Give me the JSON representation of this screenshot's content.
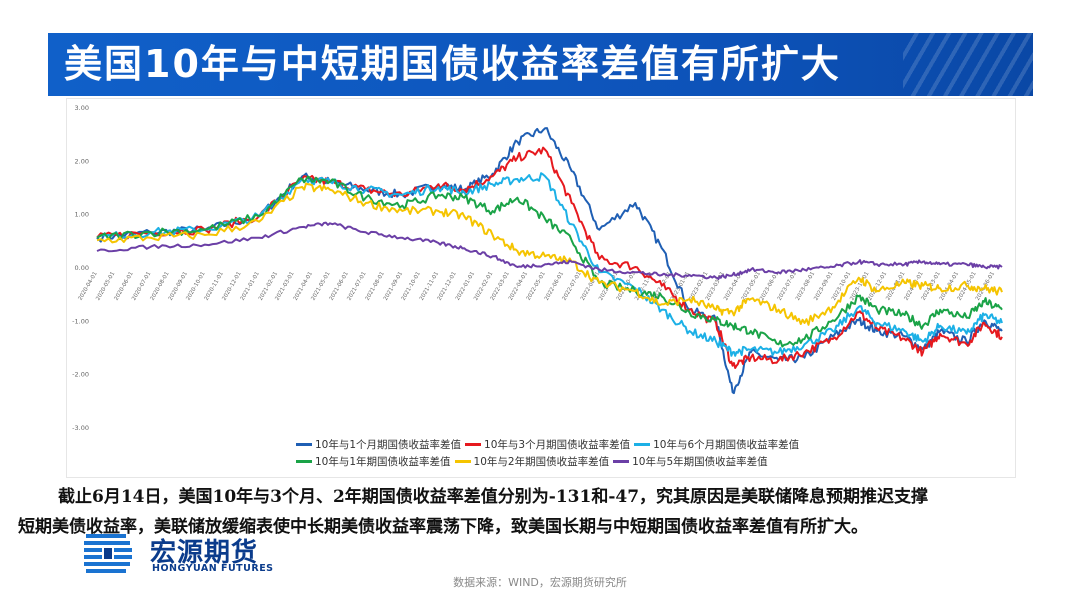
{
  "title": "美国10年与中短期国债收益率差值有所扩大",
  "body": {
    "para1": "截止6月14日，美国10年与3个月、2年期国债收益率差值分别为-131和-47，究其原因是美联储降息预期推迟支撑",
    "para2": "短期美债收益率，美联储放缓缩表使中长期美债收益率震荡下降，致美国长期与中短期国债收益率差值有所扩大。"
  },
  "logo": {
    "cn": "宏源期货",
    "en": "HONGYUAN FUTURES"
  },
  "source": "数据来源：WIND，宏源期货研究所",
  "colors": {
    "banner": "#0d52b8",
    "s1m": "#1f5fb4",
    "s3m": "#e6191e",
    "s6m": "#1cb0e6",
    "s1y": "#1aa347",
    "s2y": "#f5c400",
    "s5y": "#6b3fa6"
  },
  "chart_data": {
    "type": "line",
    "ylim": [
      -3.0,
      3.0
    ],
    "yticks": [
      "3.00",
      "2.00",
      "1.00",
      "0.00",
      "-1.00",
      "-2.00",
      "-3.00"
    ],
    "ytick_values": [
      3,
      2,
      1,
      0,
      -1,
      -2,
      -3
    ],
    "x_start": "2020-04-01",
    "x_end": "2024-06-14",
    "xticks": [
      "2020-04-01",
      "2020-05-01",
      "2020-06-01",
      "2020-07-01",
      "2020-08-01",
      "2020-09-01",
      "2020-10-01",
      "2020-11-01",
      "2020-12-01",
      "2021-01-01",
      "2021-02-01",
      "2021-03-01",
      "2021-04-01",
      "2021-05-01",
      "2021-06-01",
      "2021-07-01",
      "2021-08-01",
      "2021-09-01",
      "2021-10-01",
      "2021-11-01",
      "2021-12-01",
      "2022-01-01",
      "2022-02-01",
      "2022-03-01",
      "2022-04-01",
      "2022-05-01",
      "2022-06-01",
      "2022-07-01",
      "2022-08-01",
      "2022-09-01",
      "2022-10-01",
      "2022-11-01",
      "2022-12-01",
      "2023-01-01",
      "2023-02-01",
      "2023-03-01",
      "2023-04-01",
      "2023-05-01",
      "2023-06-01",
      "2023-07-01",
      "2023-08-01",
      "2023-09-01",
      "2023-10-01",
      "2023-11-01",
      "2023-12-01",
      "2024-01-01",
      "2024-02-01",
      "2024-03-01",
      "2024-04-01",
      "2024-05-01",
      "2024-06-01"
    ],
    "series": [
      {
        "name": "10年与1个月期国债收益率差值",
        "color": "#1f5fb4",
        "x": [
          "2020-04-01",
          "2020-07-01",
          "2020-10-01",
          "2021-01-01",
          "2021-03-15",
          "2021-05-01",
          "2021-07-01",
          "2021-09-01",
          "2021-11-01",
          "2021-12-15",
          "2022-02-01",
          "2022-03-15",
          "2022-05-01",
          "2022-06-15",
          "2022-08-01",
          "2022-10-01",
          "2022-11-15",
          "2023-01-01",
          "2023-02-15",
          "2023-03-15",
          "2023-04-15",
          "2023-06-01",
          "2023-07-15",
          "2023-09-01",
          "2023-10-15",
          "2023-11-15",
          "2024-01-01",
          "2024-02-01",
          "2024-03-01",
          "2024-04-15",
          "2024-05-15",
          "2024-06-14"
        ],
        "y": [
          0.55,
          0.65,
          0.7,
          0.95,
          1.7,
          1.6,
          1.45,
          1.35,
          1.55,
          1.45,
          1.75,
          2.35,
          2.6,
          1.8,
          0.7,
          1.2,
          0.35,
          -0.8,
          -1.0,
          -2.35,
          -1.6,
          -1.75,
          -1.7,
          -1.3,
          -1.0,
          -1.2,
          -1.3,
          -1.55,
          -1.2,
          -1.4,
          -1.0,
          -1.2
        ]
      },
      {
        "name": "10年与3个月期国债收益率差值",
        "color": "#e6191e",
        "x": [
          "2020-04-01",
          "2020-07-01",
          "2020-10-01",
          "2021-01-01",
          "2021-03-15",
          "2021-05-01",
          "2021-07-01",
          "2021-09-01",
          "2021-11-01",
          "2021-12-15",
          "2022-02-01",
          "2022-03-15",
          "2022-05-01",
          "2022-06-15",
          "2022-08-01",
          "2022-10-01",
          "2022-11-15",
          "2023-01-01",
          "2023-02-15",
          "2023-03-15",
          "2023-04-15",
          "2023-06-01",
          "2023-07-15",
          "2023-09-01",
          "2023-10-15",
          "2023-11-15",
          "2024-01-01",
          "2024-02-01",
          "2024-03-01",
          "2024-04-15",
          "2024-05-15",
          "2024-06-14"
        ],
        "y": [
          0.55,
          0.65,
          0.7,
          0.95,
          1.65,
          1.6,
          1.45,
          1.35,
          1.55,
          1.45,
          1.7,
          2.05,
          2.2,
          1.2,
          0.15,
          0.0,
          -0.35,
          -0.8,
          -1.05,
          -1.85,
          -1.7,
          -1.75,
          -1.6,
          -1.35,
          -0.85,
          -1.15,
          -1.35,
          -1.6,
          -1.25,
          -1.45,
          -1.05,
          -1.31
        ]
      },
      {
        "name": "10年与6个月期国债收益率差值",
        "color": "#1cb0e6",
        "x": [
          "2020-04-01",
          "2020-07-01",
          "2020-10-01",
          "2021-01-01",
          "2021-03-15",
          "2021-05-01",
          "2021-07-01",
          "2021-09-01",
          "2021-11-01",
          "2021-12-15",
          "2022-02-01",
          "2022-03-15",
          "2022-05-01",
          "2022-06-15",
          "2022-08-01",
          "2022-10-01",
          "2022-11-15",
          "2023-01-01",
          "2023-02-15",
          "2023-03-15",
          "2023-04-15",
          "2023-06-01",
          "2023-07-15",
          "2023-09-01",
          "2023-10-15",
          "2023-11-15",
          "2024-01-01",
          "2024-02-01",
          "2024-03-01",
          "2024-04-15",
          "2024-05-15",
          "2024-06-14"
        ],
        "y": [
          0.55,
          0.65,
          0.7,
          0.95,
          1.65,
          1.6,
          1.45,
          1.35,
          1.5,
          1.4,
          1.55,
          1.65,
          1.7,
          0.8,
          -0.1,
          -0.4,
          -0.8,
          -1.2,
          -1.4,
          -1.6,
          -1.55,
          -1.6,
          -1.45,
          -1.2,
          -0.75,
          -1.05,
          -1.2,
          -1.4,
          -1.1,
          -1.25,
          -0.9,
          -1.05
        ]
      },
      {
        "name": "10年与1年期国债收益率差值",
        "color": "#1aa347",
        "x": [
          "2020-04-01",
          "2020-07-01",
          "2020-10-01",
          "2021-01-01",
          "2021-03-15",
          "2021-05-01",
          "2021-07-01",
          "2021-09-01",
          "2021-11-01",
          "2021-12-15",
          "2022-02-01",
          "2022-03-15",
          "2022-05-01",
          "2022-06-15",
          "2022-08-01",
          "2022-10-01",
          "2022-11-15",
          "2023-01-01",
          "2023-02-15",
          "2023-03-15",
          "2023-04-15",
          "2023-06-01",
          "2023-07-15",
          "2023-09-01",
          "2023-10-15",
          "2023-11-15",
          "2024-01-01",
          "2024-02-01",
          "2024-03-01",
          "2024-04-15",
          "2024-05-15",
          "2024-06-14"
        ],
        "y": [
          0.55,
          0.65,
          0.7,
          0.95,
          1.65,
          1.6,
          1.3,
          1.15,
          1.35,
          1.3,
          1.05,
          1.3,
          0.9,
          0.5,
          -0.3,
          -0.45,
          -0.55,
          -0.85,
          -1.0,
          -1.1,
          -1.2,
          -1.45,
          -1.35,
          -1.0,
          -0.55,
          -0.8,
          -0.9,
          -1.1,
          -0.8,
          -0.95,
          -0.65,
          -0.8
        ]
      },
      {
        "name": "10年与2年期国债收益率差值",
        "color": "#f5c400",
        "x": [
          "2020-04-01",
          "2020-07-01",
          "2020-10-01",
          "2021-01-01",
          "2021-03-15",
          "2021-05-01",
          "2021-07-01",
          "2021-09-01",
          "2021-11-01",
          "2021-12-15",
          "2022-02-01",
          "2022-03-15",
          "2022-05-01",
          "2022-06-15",
          "2022-08-01",
          "2022-10-01",
          "2022-11-15",
          "2023-01-01",
          "2023-02-15",
          "2023-03-15",
          "2023-04-15",
          "2023-06-01",
          "2023-07-15",
          "2023-09-01",
          "2023-10-15",
          "2023-11-15",
          "2024-01-01",
          "2024-02-01",
          "2024-03-01",
          "2024-04-15",
          "2024-05-15",
          "2024-06-14"
        ],
        "y": [
          0.5,
          0.55,
          0.6,
          0.85,
          1.5,
          1.45,
          1.2,
          1.05,
          1.05,
          0.95,
          0.6,
          0.3,
          0.2,
          0.1,
          -0.3,
          -0.45,
          -0.7,
          -0.6,
          -0.8,
          -0.85,
          -0.6,
          -0.8,
          -1.05,
          -0.75,
          -0.2,
          -0.45,
          -0.3,
          -0.35,
          -0.4,
          -0.35,
          -0.4,
          -0.47
        ]
      },
      {
        "name": "10年与5年期国债收益率差值",
        "color": "#6b3fa6",
        "x": [
          "2020-04-01",
          "2020-07-01",
          "2020-10-01",
          "2021-01-01",
          "2021-03-15",
          "2021-05-01",
          "2021-07-01",
          "2021-09-01",
          "2021-11-01",
          "2021-12-15",
          "2022-02-01",
          "2022-03-15",
          "2022-05-01",
          "2022-06-15",
          "2022-08-01",
          "2022-10-01",
          "2022-11-15",
          "2023-01-01",
          "2023-02-15",
          "2023-03-15",
          "2023-04-15",
          "2023-06-01",
          "2023-07-15",
          "2023-09-01",
          "2023-10-15",
          "2023-11-15",
          "2024-01-01",
          "2024-02-01",
          "2024-03-01",
          "2024-04-15",
          "2024-05-15",
          "2024-06-14"
        ],
        "y": [
          0.3,
          0.38,
          0.42,
          0.55,
          0.75,
          0.82,
          0.65,
          0.55,
          0.45,
          0.35,
          0.2,
          0.0,
          0.05,
          0.1,
          -0.05,
          -0.1,
          -0.15,
          -0.15,
          -0.2,
          -0.15,
          -0.05,
          -0.1,
          -0.05,
          0.0,
          0.1,
          0.05,
          0.05,
          0.1,
          0.05,
          0.05,
          0.0,
          0.0
        ]
      }
    ]
  }
}
